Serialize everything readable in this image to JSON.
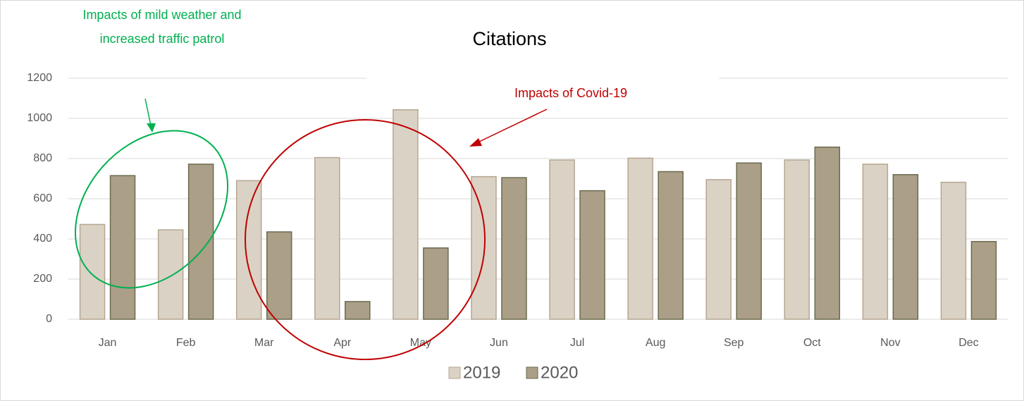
{
  "chart_data": {
    "type": "bar",
    "title": "Citations",
    "categories": [
      "Jan",
      "Feb",
      "Mar",
      "Apr",
      "May",
      "Jun",
      "Jul",
      "Aug",
      "Sep",
      "Oct",
      "Nov",
      "Dec"
    ],
    "series": [
      {
        "name": "2019",
        "color": "#dbd2c6",
        "values": [
          472,
          445,
          690,
          805,
          1043,
          710,
          793,
          802,
          695,
          793,
          772,
          682
        ]
      },
      {
        "name": "2020",
        "color": "#ab9f88",
        "values": [
          715,
          772,
          435,
          88,
          355,
          705,
          640,
          735,
          778,
          857,
          720,
          387
        ]
      }
    ],
    "ylim": [
      0,
      1200
    ],
    "yticks": [
      0,
      200,
      400,
      600,
      800,
      1000,
      1200
    ],
    "grid": true,
    "legend": "bottom",
    "annotations": [
      {
        "lines": [
          "Impacts of mild weather and",
          "increased traffic patrol"
        ],
        "color": "#00b050"
      },
      {
        "lines": [
          "Impacts of Covid-19"
        ],
        "color": "#c00000"
      }
    ]
  }
}
